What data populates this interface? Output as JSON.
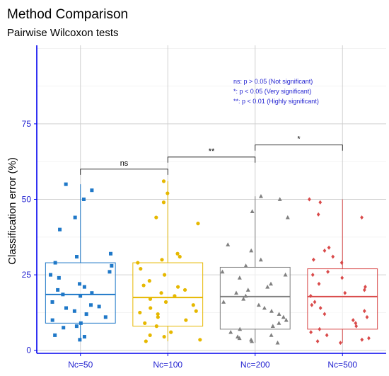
{
  "chart_data": {
    "type": "box",
    "title": "Method Comparison",
    "subtitle": "Pairwise Wilcoxon tests",
    "ylabel": "Classification error (%)",
    "xlabel": "",
    "categories": [
      "Nc=50",
      "Nc=100",
      "Nc=200",
      "Nc=500"
    ],
    "ylim": [
      -1,
      101
    ],
    "yticks": [
      0,
      25,
      50,
      75
    ],
    "grid": true,
    "colors": [
      "#1f78c8",
      "#e6b800",
      "#808080",
      "#d94a4a"
    ],
    "markers": [
      "square",
      "circle",
      "triangle",
      "diamond"
    ],
    "boxes": [
      {
        "q1": 9,
        "median": 18.5,
        "q3": 29,
        "lower": 3,
        "upper": 55
      },
      {
        "q1": 8,
        "median": 17.5,
        "q3": 29,
        "lower": 3,
        "upper": 56
      },
      {
        "q1": 7,
        "median": 17.8,
        "q3": 27.5,
        "lower": 2.5,
        "upper": 51
      },
      {
        "q1": 7,
        "median": 17.8,
        "q3": 27,
        "lower": 2.5,
        "upper": 50
      }
    ],
    "points": [
      [
        3.5,
        4.5,
        5,
        7.5,
        8,
        9,
        10,
        11,
        12,
        13,
        14,
        14.5,
        15,
        16,
        18,
        18.5,
        19,
        20,
        21,
        22,
        24,
        25,
        26,
        28,
        29,
        31,
        32,
        40,
        44,
        50,
        53,
        55
      ],
      [
        3,
        3.5,
        4.5,
        5,
        6,
        8,
        9,
        10,
        11,
        12,
        12.5,
        13,
        14,
        15,
        16,
        17,
        18,
        19,
        20,
        21,
        21.5,
        23,
        25,
        27,
        29,
        30,
        31,
        32,
        42,
        44,
        49,
        52,
        56
      ],
      [
        2.5,
        3,
        3.5,
        4,
        4.5,
        5,
        6,
        7,
        8,
        9,
        10,
        11,
        12,
        13,
        14,
        15,
        16,
        17,
        18,
        19,
        20,
        21,
        22,
        24,
        25,
        26,
        28,
        30,
        33,
        35,
        44,
        46,
        50,
        51
      ],
      [
        2.5,
        3,
        3.5,
        4,
        5,
        6,
        7,
        8,
        9,
        10,
        11,
        12,
        13,
        14,
        15,
        16,
        18,
        19,
        20,
        21,
        22,
        24,
        25,
        26,
        29,
        30,
        31,
        33,
        34,
        44,
        45,
        49,
        50
      ]
    ],
    "comparisons": [
      {
        "from": 0,
        "to": 1,
        "y": 60,
        "label": "ns"
      },
      {
        "from": 1,
        "to": 2,
        "y": 64,
        "label": "**"
      },
      {
        "from": 2,
        "to": 3,
        "y": 68,
        "label": "*"
      }
    ],
    "annotations": [
      "ns: p > 0.05 (Not significant)",
      "*: p < 0.05 (Very significant)",
      "**: p < 0.01 (Highly significant)"
    ]
  }
}
